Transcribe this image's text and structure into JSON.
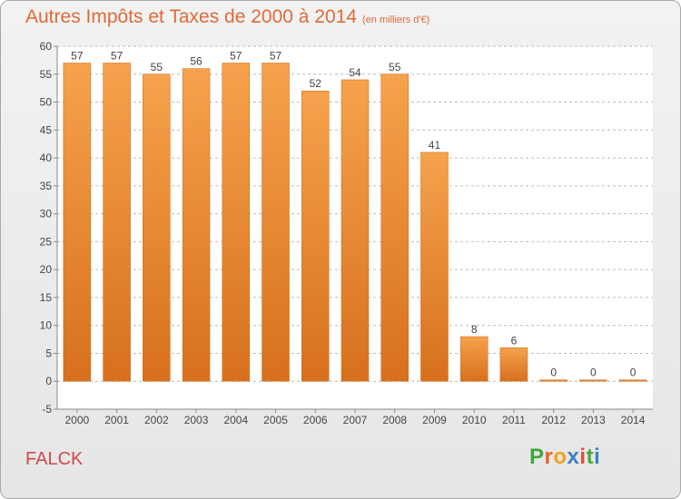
{
  "chart_data": {
    "type": "bar",
    "title": "Autres Impôts et Taxes de 2000 à 2014",
    "subtitle": "(en milliers d'€)",
    "categories": [
      "2000",
      "2001",
      "2002",
      "2003",
      "2004",
      "2005",
      "2006",
      "2007",
      "2008",
      "2009",
      "2010",
      "2011",
      "2012",
      "2013",
      "2014"
    ],
    "values": [
      57,
      57,
      55,
      56,
      57,
      57,
      52,
      54,
      55,
      41,
      8,
      6,
      0,
      0,
      0
    ],
    "ylim": [
      -5,
      60
    ],
    "yticks": [
      -5,
      0,
      5,
      10,
      15,
      20,
      25,
      30,
      35,
      40,
      45,
      50,
      55,
      60
    ],
    "grid": true,
    "colors": {
      "bar_light": "#f6a24c",
      "bar_dark": "#d7701e",
      "grid": "#bcbcbc"
    }
  },
  "footer": {
    "place": "FALCK",
    "logo_letters": [
      "P",
      "r",
      "o",
      "x",
      "i",
      "t",
      "i"
    ],
    "logo_colors": [
      "#3fa53c",
      "#e8622a",
      "#f2a11f",
      "#3b7fc4",
      "#e84b3a",
      "#48a83f",
      "#3b7fc4"
    ]
  }
}
